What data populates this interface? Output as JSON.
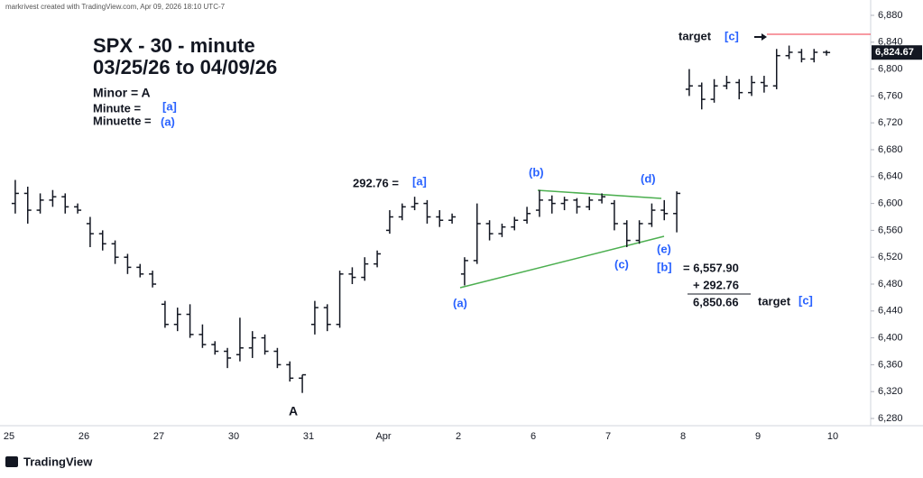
{
  "header": "markrivest created with TradingView.com, Apr 09, 2026 18:10 UTC-7",
  "footer": "TradingView",
  "chart_data": {
    "type": "ohlc",
    "categories": [
      "25",
      null,
      null,
      null,
      null,
      null,
      "26",
      null,
      null,
      null,
      null,
      null,
      "27",
      null,
      null,
      null,
      null,
      null,
      "30",
      null,
      null,
      null,
      null,
      null,
      "31",
      null,
      null,
      null,
      null,
      null,
      "Apr",
      null,
      null,
      null,
      null,
      null,
      "2",
      null,
      null,
      null,
      null,
      null,
      "6",
      null,
      null,
      null,
      null,
      null,
      "7",
      null,
      null,
      null,
      null,
      null,
      "8",
      null,
      null,
      null,
      null,
      null,
      "9",
      null,
      null,
      null,
      null,
      null,
      "10"
    ],
    "color": "#131722",
    "series": [
      {
        "name": "open",
        "values": [
          6600,
          6615,
          6590,
          6605,
          6610,
          6595,
          6570,
          6555,
          6540,
          6520,
          6505,
          6495,
          6450,
          6420,
          6435,
          6405,
          6390,
          6380,
          6375,
          6385,
          6400,
          6380,
          6360,
          6340,
          6420,
          6445,
          6420,
          6495,
          6490,
          6510,
          6560,
          6580,
          6595,
          6600,
          6580,
          6575,
          6495,
          6515,
          6570,
          6555,
          6565,
          6575,
          6590,
          6605,
          6600,
          6605,
          6595,
          6605,
          6600,
          6570,
          6545,
          6570,
          6590,
          6585,
          6770,
          6775,
          6755,
          6775,
          6780,
          6765,
          6780,
          6775,
          6820,
          6825,
          6815,
          6825,
          null
        ]
      },
      {
        "name": "high",
        "values": [
          6635,
          6625,
          6615,
          6620,
          6615,
          6600,
          6580,
          6560,
          6545,
          6525,
          6510,
          6500,
          6455,
          6445,
          6450,
          6420,
          6395,
          6385,
          6430,
          6410,
          6405,
          6385,
          6365,
          6345,
          6455,
          6450,
          6500,
          6505,
          6520,
          6530,
          6590,
          6600,
          6610,
          6605,
          6590,
          6585,
          6520,
          6600,
          6575,
          6570,
          6580,
          6595,
          6620,
          6612,
          6610,
          6608,
          6610,
          6615,
          6605,
          6575,
          6575,
          6600,
          6605,
          6618,
          6800,
          6780,
          6785,
          6790,
          6785,
          6790,
          6790,
          6830,
          6835,
          6830,
          6830,
          6828,
          null
        ]
      },
      {
        "name": "low",
        "values": [
          6585,
          6570,
          6585,
          6595,
          6585,
          6585,
          6535,
          6530,
          6510,
          6495,
          6490,
          6475,
          6415,
          6410,
          6400,
          6385,
          6375,
          6355,
          6365,
          6370,
          6375,
          6355,
          6335,
          6318,
          6405,
          6410,
          6415,
          6480,
          6485,
          6505,
          6555,
          6575,
          6590,
          6570,
          6565,
          6570,
          6478,
          6510,
          6545,
          6550,
          6560,
          6570,
          6580,
          6585,
          6590,
          6585,
          6590,
          6600,
          6560,
          6535,
          6540,
          6565,
          6575,
          6557,
          6760,
          6740,
          6750,
          6770,
          6755,
          6760,
          6765,
          6770,
          6815,
          6810,
          6810,
          6820,
          null
        ]
      },
      {
        "name": "close",
        "values": [
          6615,
          6590,
          6605,
          6610,
          6595,
          6590,
          6555,
          6540,
          6520,
          6505,
          6495,
          6480,
          6420,
          6435,
          6405,
          6390,
          6380,
          6370,
          6385,
          6400,
          6380,
          6360,
          6340,
          6345,
          6445,
          6420,
          6495,
          6490,
          6510,
          6525,
          6580,
          6595,
          6600,
          6580,
          6575,
          6580,
          6515,
          6570,
          6555,
          6565,
          6575,
          6585,
          6605,
          6600,
          6605,
          6595,
          6605,
          6610,
          6570,
          6545,
          6570,
          6590,
          6585,
          6615,
          6775,
          6755,
          6775,
          6780,
          6765,
          6780,
          6775,
          6820,
          6825,
          6815,
          6825,
          6824.67,
          null
        ]
      }
    ],
    "last_price_label": "6,824.67",
    "ylim": [
      6280,
      6880
    ],
    "yticks": [
      {
        "value": 6280,
        "label": "6,280"
      },
      {
        "value": 6320,
        "label": "6,320"
      },
      {
        "value": 6360,
        "label": "6,360"
      },
      {
        "value": 6400,
        "label": "6,400"
      },
      {
        "value": 6440,
        "label": "6,440"
      },
      {
        "value": 6480,
        "label": "6,480"
      },
      {
        "value": 6520,
        "label": "6,520"
      },
      {
        "value": 6560,
        "label": "6,560"
      },
      {
        "value": 6600,
        "label": "6,600"
      },
      {
        "value": 6640,
        "label": "6,640"
      },
      {
        "value": 6680,
        "label": "6,680"
      },
      {
        "value": 6720,
        "label": "6,720"
      },
      {
        "value": 6760,
        "label": "6,760"
      },
      {
        "value": 6800,
        "label": "6,800"
      },
      {
        "value": 6840,
        "label": "6,840"
      },
      {
        "value": 6880,
        "label": "6,880"
      }
    ],
    "grid": false,
    "annotations": [
      "SPX - 30 - minute",
      "03/25/26 to 04/09/26",
      "Minor = A",
      "Minute =",
      "[a]",
      "Minuette =",
      "(a)",
      "292.76 =",
      "[a]",
      "(b)",
      "(d)",
      "(c)",
      "(e)",
      "(a)",
      "A",
      "[b]",
      "= 6,557.90",
      "+ 292.76",
      "6,850.66",
      "target",
      "[c]",
      "target",
      "[c]"
    ]
  }
}
